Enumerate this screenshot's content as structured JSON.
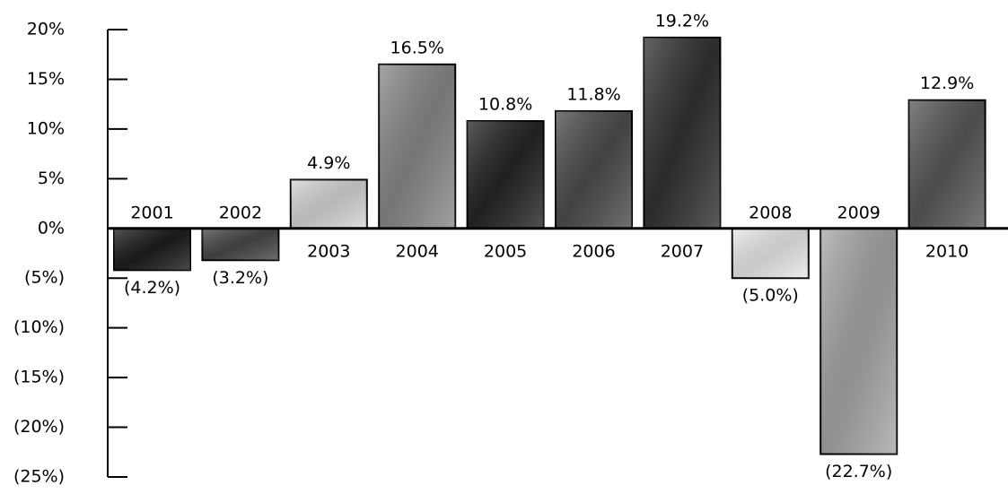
{
  "chart_data": {
    "type": "bar",
    "categories": [
      "2001",
      "2002",
      "2003",
      "2004",
      "2005",
      "2006",
      "2007",
      "2008",
      "2009",
      "2010"
    ],
    "values": [
      -4.2,
      -3.2,
      4.9,
      16.5,
      10.8,
      11.8,
      19.2,
      -5.0,
      -22.7,
      12.9
    ],
    "value_labels": [
      "(4.2%)",
      "(3.2%)",
      "4.9%",
      "16.5%",
      "10.8%",
      "11.8%",
      "19.2%",
      "(5.0%)",
      "(22.7%)",
      "12.9%"
    ],
    "colors": [
      "#1e1e1e",
      "#4a4a4a",
      "#d8d8d8",
      "#8a8a8a",
      "#262626",
      "#4e4e4e",
      "#333333",
      "#ececec",
      "#a8a8a8",
      "#5a5a5a"
    ],
    "ylim": [
      -25,
      20
    ],
    "yticks": [
      {
        "value": 20,
        "label": "20%"
      },
      {
        "value": 15,
        "label": "15%"
      },
      {
        "value": 10,
        "label": "10%"
      },
      {
        "value": 5,
        "label": "5%"
      },
      {
        "value": 0,
        "label": "0%"
      },
      {
        "value": -5,
        "label": "(5%)"
      },
      {
        "value": -10,
        "label": "(10%)"
      },
      {
        "value": -15,
        "label": "(15%)"
      },
      {
        "value": -20,
        "label": "(20%)"
      },
      {
        "value": -25,
        "label": "(25%)"
      }
    ]
  }
}
